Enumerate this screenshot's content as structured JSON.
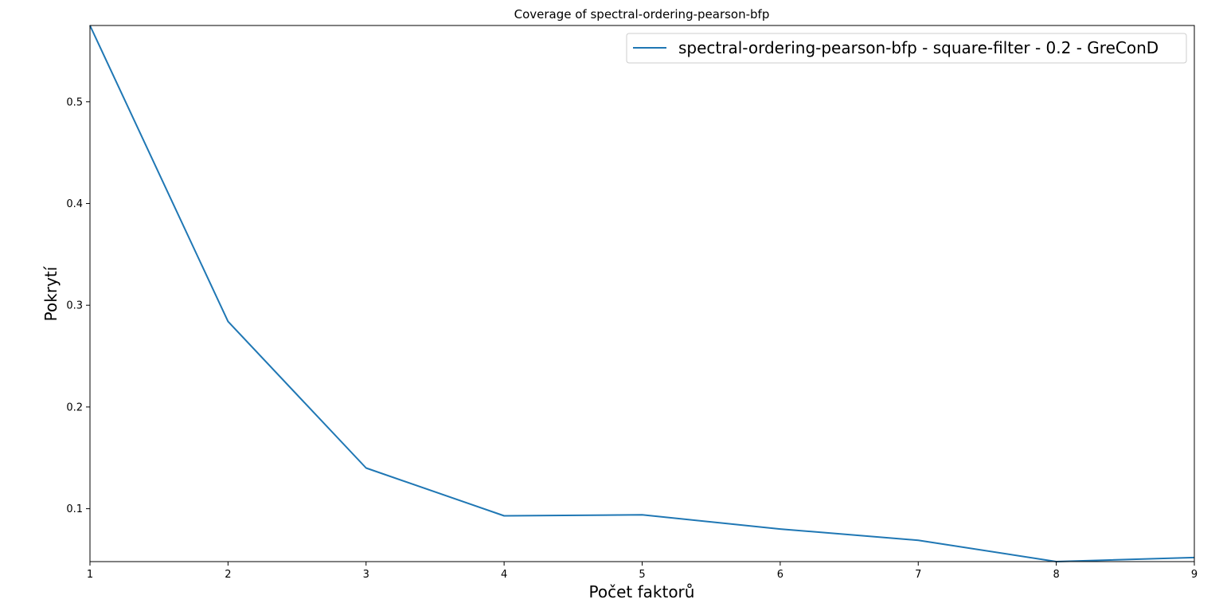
{
  "chart_data": {
    "type": "line",
    "title": "Coverage of spectral-ordering-pearson-bfp",
    "xlabel": "Počet faktorů",
    "ylabel": "Pokrytí",
    "xlim": [
      1,
      9
    ],
    "ylim": [
      0.048,
      0.575
    ],
    "xticks": [
      1,
      2,
      3,
      4,
      5,
      6,
      7,
      8,
      9
    ],
    "xtick_labels": [
      "1",
      "2",
      "3",
      "4",
      "5",
      "6",
      "7",
      "8",
      "9"
    ],
    "yticks": [
      0.1,
      0.2,
      0.3,
      0.4,
      0.5
    ],
    "ytick_labels": [
      "0.1",
      "0.2",
      "0.3",
      "0.4",
      "0.5"
    ],
    "grid": false,
    "legend_position": "top-right",
    "x": [
      1,
      2,
      3,
      4,
      5,
      6,
      7,
      8,
      9
    ],
    "series": [
      {
        "name": "spectral-ordering-pearson-bfp - square-filter - 0.2 - GreConD",
        "color": "#1f77b4",
        "values": [
          0.575,
          0.284,
          0.14,
          0.093,
          0.094,
          0.08,
          0.069,
          0.048,
          0.052
        ]
      }
    ]
  }
}
